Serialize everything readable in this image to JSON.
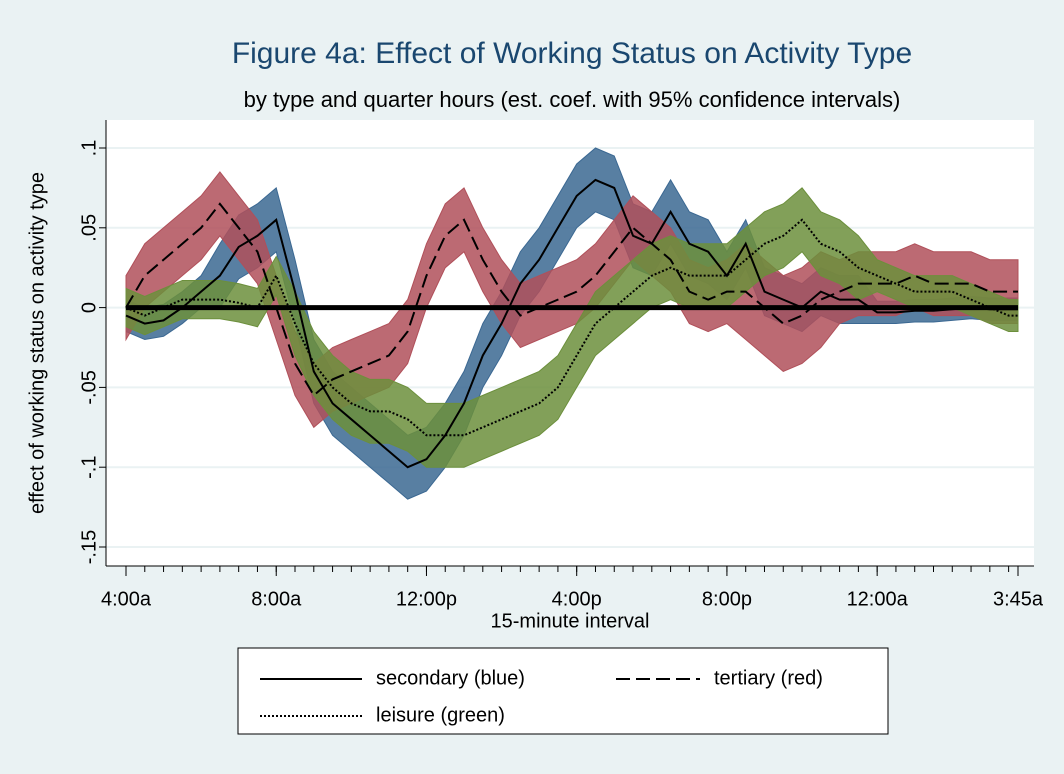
{
  "chart_data": {
    "type": "line_band",
    "title": "Figure 4a: Effect of Working Status on Activity Type",
    "subtitle": "by type and quarter hours (est. coef. with 95% confidence intervals)",
    "xlabel": "15-minute interval",
    "ylabel": "effect of working status on activity type",
    "x": [
      0,
      2,
      4,
      6,
      8,
      10,
      12,
      14,
      16,
      18,
      20,
      22,
      24,
      26,
      28,
      30,
      32,
      34,
      36,
      38,
      40,
      42,
      44,
      46,
      48,
      50,
      52,
      54,
      56,
      58,
      60,
      62,
      64,
      66,
      68,
      70,
      72,
      74,
      76,
      78,
      80,
      82,
      84,
      86,
      88,
      90,
      92,
      94,
      95
    ],
    "xlim": [
      0,
      95
    ],
    "xticks": [
      {
        "value": 0,
        "label": "4:00a"
      },
      {
        "value": 16,
        "label": "8:00a"
      },
      {
        "value": 32,
        "label": "12:00p"
      },
      {
        "value": 48,
        "label": "4:00p"
      },
      {
        "value": 64,
        "label": "8:00p"
      },
      {
        "value": 80,
        "label": "12:00a"
      },
      {
        "value": 95,
        "label": "3:45a"
      }
    ],
    "ylim": [
      -0.15,
      0.1
    ],
    "yticks": [
      {
        "value": -0.15,
        "label": "-.15"
      },
      {
        "value": -0.1,
        "label": "-.1"
      },
      {
        "value": -0.05,
        "label": "-.05"
      },
      0,
      {
        "value": 0.05,
        "label": ".05"
      },
      {
        "value": 0.1,
        "label": ".1"
      }
    ],
    "grid": true,
    "hline": 0,
    "series": [
      {
        "name": "secondary (blue)",
        "color": "#3b6892",
        "line_style": "solid",
        "values": [
          -0.005,
          -0.01,
          -0.008,
          0,
          0.01,
          0.02,
          0.038,
          0.045,
          0.055,
          0.01,
          -0.04,
          -0.06,
          -0.07,
          -0.08,
          -0.09,
          -0.1,
          -0.095,
          -0.08,
          -0.06,
          -0.03,
          -0.01,
          0.015,
          0.03,
          0.05,
          0.07,
          0.08,
          0.075,
          0.045,
          0.04,
          0.06,
          0.04,
          0.035,
          0.02,
          0.04,
          0.01,
          0.005,
          0,
          0.01,
          0.005,
          0.005,
          -0.003,
          -0.003,
          -0.002,
          -0.002,
          -0.001,
          0,
          -0.001,
          -0.001,
          -0.001
        ],
        "lower": [
          -0.015,
          -0.02,
          -0.018,
          -0.01,
          0,
          0,
          0.018,
          0.025,
          0.035,
          -0.01,
          -0.06,
          -0.08,
          -0.09,
          -0.1,
          -0.11,
          -0.12,
          -0.115,
          -0.1,
          -0.08,
          -0.05,
          -0.03,
          -0.005,
          0.01,
          0.03,
          0.05,
          0.06,
          0.055,
          0.025,
          0.02,
          0.04,
          0.02,
          0.015,
          0.005,
          0.025,
          -0.005,
          -0.01,
          -0.015,
          -0.005,
          -0.01,
          -0.01,
          -0.01,
          -0.01,
          -0.009,
          -0.009,
          -0.008,
          -0.007,
          -0.008,
          -0.008,
          -0.008
        ],
        "upper": [
          0.005,
          0,
          0.002,
          0.01,
          0.02,
          0.04,
          0.058,
          0.065,
          0.075,
          0.03,
          -0.02,
          -0.04,
          -0.05,
          -0.06,
          -0.07,
          -0.08,
          -0.075,
          -0.06,
          -0.04,
          -0.01,
          0.01,
          0.035,
          0.05,
          0.07,
          0.09,
          0.1,
          0.095,
          0.065,
          0.06,
          0.08,
          0.06,
          0.055,
          0.035,
          0.055,
          0.025,
          0.02,
          0.015,
          0.025,
          0.02,
          0.02,
          0.004,
          0.004,
          0.005,
          0.005,
          0.006,
          0.007,
          0.006,
          0.006,
          0.006
        ]
      },
      {
        "name": "tertiary (red)",
        "color": "#b0505a",
        "line_style": "dashed",
        "values": [
          0,
          0.02,
          0.03,
          0.04,
          0.05,
          0.065,
          0.05,
          0.035,
          0,
          -0.035,
          -0.055,
          -0.045,
          -0.04,
          -0.035,
          -0.03,
          -0.015,
          0.02,
          0.045,
          0.055,
          0.03,
          0.01,
          -0.005,
          0,
          0.005,
          0.01,
          0.02,
          0.035,
          0.05,
          0.04,
          0.03,
          0.01,
          0.005,
          0.01,
          0.01,
          0,
          -0.01,
          -0.005,
          0.005,
          0.01,
          0.015,
          0.015,
          0.015,
          0.02,
          0.015,
          0.015,
          0.015,
          0.01,
          0.01,
          0.01
        ],
        "lower": [
          -0.02,
          0,
          0.01,
          0.02,
          0.03,
          0.045,
          0.03,
          0.015,
          -0.02,
          -0.055,
          -0.075,
          -0.065,
          -0.06,
          -0.055,
          -0.05,
          -0.035,
          0,
          0.025,
          0.035,
          0.01,
          -0.01,
          -0.025,
          -0.02,
          -0.015,
          -0.01,
          0,
          0.015,
          0.03,
          0.02,
          0.01,
          -0.01,
          -0.015,
          -0.01,
          -0.02,
          -0.03,
          -0.04,
          -0.035,
          -0.025,
          -0.01,
          -0.005,
          -0.005,
          -0.005,
          0,
          -0.005,
          -0.005,
          -0.005,
          -0.01,
          -0.01,
          -0.01
        ],
        "upper": [
          0.02,
          0.04,
          0.05,
          0.06,
          0.07,
          0.085,
          0.07,
          0.055,
          0.02,
          -0.015,
          -0.035,
          -0.025,
          -0.02,
          -0.015,
          -0.01,
          0.005,
          0.04,
          0.065,
          0.075,
          0.05,
          0.03,
          0.015,
          0.02,
          0.025,
          0.03,
          0.04,
          0.055,
          0.07,
          0.06,
          0.05,
          0.03,
          0.025,
          0.03,
          0.04,
          0.03,
          0.02,
          0.025,
          0.035,
          0.03,
          0.035,
          0.035,
          0.035,
          0.04,
          0.035,
          0.035,
          0.035,
          0.03,
          0.03,
          0.03
        ]
      },
      {
        "name": "leisure (green)",
        "color": "#6c8f3c",
        "line_style": "dotted",
        "values": [
          0,
          -0.005,
          0,
          0.005,
          0.005,
          0.005,
          0.003,
          0,
          0.02,
          -0.01,
          -0.035,
          -0.05,
          -0.06,
          -0.065,
          -0.065,
          -0.07,
          -0.08,
          -0.08,
          -0.08,
          -0.075,
          -0.07,
          -0.065,
          -0.06,
          -0.05,
          -0.03,
          -0.01,
          0,
          0.01,
          0.02,
          0.025,
          0.02,
          0.02,
          0.02,
          0.03,
          0.04,
          0.045,
          0.055,
          0.04,
          0.035,
          0.025,
          0.02,
          0.015,
          0.01,
          0.01,
          0.01,
          0.005,
          0,
          -0.005,
          -0.005
        ],
        "lower": [
          -0.012,
          -0.017,
          -0.012,
          -0.007,
          -0.007,
          -0.007,
          -0.009,
          -0.012,
          0.008,
          -0.03,
          -0.055,
          -0.07,
          -0.08,
          -0.085,
          -0.085,
          -0.09,
          -0.1,
          -0.1,
          -0.1,
          -0.095,
          -0.09,
          -0.085,
          -0.08,
          -0.07,
          -0.05,
          -0.03,
          -0.02,
          -0.01,
          0,
          0.005,
          0,
          0,
          0,
          0.01,
          0.02,
          0.025,
          0.035,
          0.02,
          0.015,
          0.005,
          0.01,
          0.005,
          0,
          0,
          0,
          -0.005,
          -0.01,
          -0.015,
          -0.015
        ],
        "upper": [
          0.012,
          0.007,
          0.012,
          0.017,
          0.017,
          0.017,
          0.015,
          0.012,
          0.032,
          0.01,
          -0.015,
          -0.03,
          -0.04,
          -0.045,
          -0.045,
          -0.05,
          -0.06,
          -0.06,
          -0.06,
          -0.055,
          -0.05,
          -0.045,
          -0.04,
          -0.03,
          -0.01,
          0.01,
          0.02,
          0.03,
          0.04,
          0.045,
          0.04,
          0.04,
          0.04,
          0.05,
          0.06,
          0.065,
          0.075,
          0.06,
          0.055,
          0.045,
          0.03,
          0.025,
          0.02,
          0.02,
          0.02,
          0.015,
          0.01,
          0.005,
          0.005
        ]
      }
    ]
  }
}
